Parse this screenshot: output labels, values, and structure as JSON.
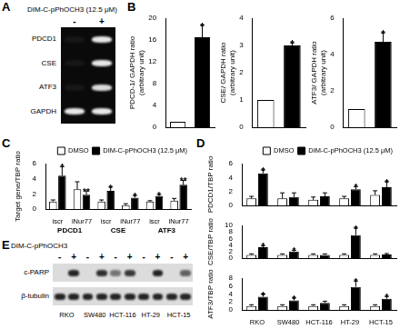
{
  "chart_data": [
    {
      "panel": "B",
      "type": "bar",
      "y_label": [
        "PDCD-1/ GAPDH ratio",
        "(arbitrary unit)"
      ],
      "categories": [
        null,
        null
      ],
      "values": [
        1,
        16.5
      ],
      "errors": [
        null,
        2.2
      ],
      "annotations": [
        null,
        "*"
      ],
      "colors": [
        "#ffffff",
        "#000000"
      ],
      "ylim": [
        0,
        20
      ],
      "yticks": [
        0,
        4,
        8,
        12,
        16,
        20
      ],
      "tick_labels": "y",
      "grid": false
    },
    {
      "type": "bar",
      "y_label": [
        "CSE/ GAPDH ratio",
        "(arbitrary unit)"
      ],
      "categories": [
        null,
        null
      ],
      "values": [
        1,
        3
      ],
      "errors": [
        null,
        0.1
      ],
      "annotations": [
        null,
        "*"
      ],
      "colors": [
        "#ffffff",
        "#000000"
      ],
      "ylim": [
        0,
        4
      ],
      "yticks": [
        0,
        1,
        2,
        3,
        4
      ],
      "tick_labels": "y",
      "grid": false
    },
    {
      "type": "bar",
      "y_label": [
        "ATF3/ GAPDH ratio",
        "(arbitrary unit)"
      ],
      "categories": [
        null,
        null
      ],
      "values": [
        1,
        4.7
      ],
      "errors": [
        null,
        0.5
      ],
      "annotations": [
        null,
        "*"
      ],
      "colors": [
        "#ffffff",
        "#000000"
      ],
      "ylim": [
        0,
        6
      ],
      "yticks": [
        0,
        2,
        4,
        6
      ],
      "tick_labels": "y",
      "grid": false
    },
    {
      "panel": "C",
      "type": "bar",
      "y_label": [
        "Target gene/TBP ratio"
      ],
      "categories": [
        "iscr",
        "iNur77",
        "iscr",
        "iNur77",
        "iscr",
        "iNur77"
      ],
      "category_groups": [
        "PDCD1",
        "CSE",
        "ATF3"
      ],
      "series": [
        {
          "name": "DMSO",
          "color": "#ffffff",
          "values": [
            1,
            2.6,
            1,
            0.5,
            1,
            1.1
          ],
          "errors": [
            0.2,
            1,
            0.2,
            0.2,
            0.1,
            0.3
          ],
          "annotations": [
            null,
            null,
            null,
            null,
            null,
            null
          ]
        },
        {
          "name": "DIM-C-pPhOCH3 (12.5 μM)",
          "color": "#000000",
          "values": [
            4.4,
            1.9,
            2.4,
            1.5,
            1.7,
            3.2
          ],
          "errors": [
            1.2,
            0.5,
            0.5,
            0.3,
            0.2,
            0.6
          ],
          "annotations": [
            "*",
            "**",
            "*",
            "*",
            "*",
            "**"
          ]
        }
      ],
      "ylim": [
        0,
        6
      ],
      "yticks": [
        0,
        2,
        4,
        6
      ],
      "legend": "top-right",
      "grid": false
    },
    {
      "panel": "D",
      "type": "bar",
      "y_label": [
        "PDCD1/TBP ratio"
      ],
      "categories": [
        "RKO",
        "SW480",
        "HCT-116",
        "HT-29",
        "HCT-15"
      ],
      "series": [
        {
          "name": "DMSO",
          "color": "#ffffff",
          "values": [
            1,
            1,
            0.8,
            1,
            1.5
          ],
          "errors": [
            0.3,
            0.8,
            0.4,
            0.3,
            0.6
          ],
          "annotations": [
            null,
            null,
            null,
            null,
            null
          ]
        },
        {
          "name": "DIM-C-pPhOCH3 (12.5 μM)",
          "color": "#000000",
          "values": [
            4.6,
            1.2,
            1.3,
            2.3,
            2.6
          ],
          "errors": [
            0.5,
            0.6,
            0.5,
            0.4,
            0.8
          ],
          "annotations": [
            "*",
            null,
            null,
            "*",
            "*"
          ]
        }
      ],
      "ylim": [
        0,
        6
      ],
      "yticks": [
        0,
        2,
        4,
        6
      ],
      "legend": "top-right",
      "tick_labels": "y",
      "grid": false
    },
    {
      "type": "bar",
      "y_label": [
        "CSE/TBP ratio"
      ],
      "categories": [
        "RKO",
        "SW480",
        "HCT-116",
        "HT-29",
        "HCT-15"
      ],
      "series": [
        {
          "name": "DMSO",
          "color": "#ffffff",
          "values": [
            1,
            1,
            1,
            1,
            1
          ],
          "errors": [
            0.3,
            0.3,
            0.3,
            0.3,
            0.3
          ],
          "annotations": [
            null,
            null,
            null,
            null,
            null
          ]
        },
        {
          "name": "DIM-C-pPhOCH3 (12.5 μM)",
          "color": "#000000",
          "values": [
            3.3,
            2,
            1,
            7,
            1.1
          ],
          "errors": [
            0.5,
            0.4,
            0.3,
            2.2,
            0.3
          ],
          "annotations": [
            "*",
            "*",
            null,
            "*",
            null
          ]
        }
      ],
      "ylim": [
        0,
        10
      ],
      "yticks": [
        0,
        2,
        4,
        6,
        8,
        10
      ],
      "tick_labels": "y",
      "grid": false
    },
    {
      "type": "bar",
      "y_label": [
        "ATF3/TBP ratio"
      ],
      "categories": [
        "RKO",
        "SW480",
        "HCT-116",
        "HT-29",
        "HCT-15"
      ],
      "series": [
        {
          "name": "DMSO",
          "color": "#ffffff",
          "values": [
            1,
            1,
            1,
            1,
            1
          ],
          "errors": [
            0.3,
            0.3,
            0.3,
            0.3,
            0.3
          ],
          "annotations": [
            null,
            null,
            null,
            null,
            null
          ]
        },
        {
          "name": "DIM-C-pPhOCH3 (12.5 μM)",
          "color": "#000000",
          "values": [
            3.3,
            2.4,
            1.8,
            5.8,
            2.8
          ],
          "errors": [
            0.7,
            0.6,
            0.4,
            1.5,
            0.6
          ],
          "annotations": [
            "*",
            "*",
            null,
            "*",
            "*"
          ]
        }
      ],
      "ylim": [
        0,
        8
      ],
      "yticks": [
        0,
        2,
        4,
        6,
        8
      ],
      "grid": false
    }
  ],
  "blots": [
    {
      "panel": "A",
      "header": "DIM-C-pPhOCH3 (12.5 μM)",
      "lanes": [
        "-",
        "+"
      ],
      "rows": [
        {
          "label": "PDCD1",
          "bands": [
            0.05,
            0.9
          ]
        },
        {
          "label": "CSE",
          "bands": [
            0.05,
            0.9
          ]
        },
        {
          "label": "ATF3",
          "bands": [
            0.05,
            0.85
          ]
        },
        {
          "label": "GAPDH",
          "bands": [
            0.9,
            0.9
          ]
        }
      ]
    },
    {
      "panel": "E",
      "header": "DIM-C-pPhOCH3",
      "lanes": [
        "-",
        "+",
        "-",
        "+",
        "-",
        "+",
        "-",
        "+",
        "-",
        "+"
      ],
      "groups": [
        "RKO",
        "SW480",
        "HCT-116",
        "HT-29",
        "HCT-15"
      ],
      "rows": [
        {
          "label": "c-PARP",
          "bands": [
            0,
            0.9,
            0,
            0.85,
            0.5,
            0.8,
            0,
            0.9,
            0,
            0.6
          ]
        },
        {
          "label": "β-tubulin",
          "bands": [
            0.9,
            0.9,
            0.9,
            0.9,
            0.9,
            0.9,
            0.9,
            0.9,
            0.9,
            0.9
          ]
        }
      ]
    }
  ]
}
